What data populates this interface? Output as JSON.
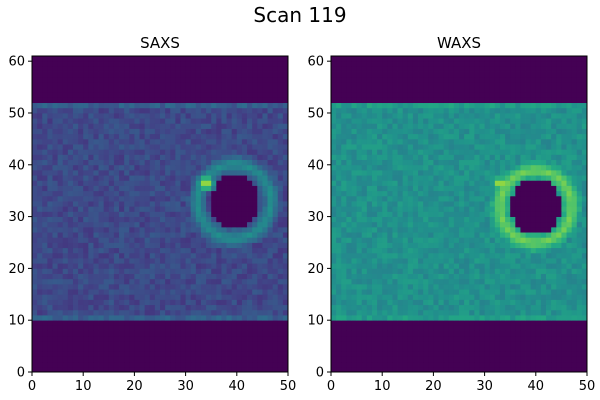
{
  "chart_data": {
    "type": "heatmap",
    "title": "Scan 119",
    "colormap": "viridis",
    "panels": [
      {
        "title": "SAXS",
        "xlim": [
          0,
          50
        ],
        "ylim": [
          0,
          61
        ],
        "xticks": [
          0,
          10,
          20,
          30,
          40,
          50
        ],
        "yticks": [
          0,
          10,
          20,
          30,
          40,
          50,
          60
        ],
        "grid": false,
        "sample_band_y": [
          9.5,
          52
        ],
        "background_level": 0.0,
        "band_level": 0.22,
        "band_edge_level": 0.3,
        "hole_center": [
          39.5,
          33
        ],
        "hole_radius": [
          4.8,
          5.5
        ],
        "ring_radius": 7.2,
        "ring_level": 0.5,
        "hotspot": {
          "x": 34,
          "y": 36.5,
          "level": 1.0
        }
      },
      {
        "title": "WAXS",
        "xlim": [
          0,
          50
        ],
        "ylim": [
          0,
          61
        ],
        "xticks": [
          0,
          10,
          20,
          30,
          40,
          50
        ],
        "yticks": [
          0,
          10,
          20,
          30,
          40,
          50,
          60
        ],
        "grid": false,
        "sample_band_y": [
          9.5,
          52.5
        ],
        "background_level": 0.0,
        "band_level": 0.5,
        "band_edge_level": 0.55,
        "hole_center": [
          40,
          32
        ],
        "hole_radius": [
          5,
          5.5
        ],
        "ring_radius": 7.0,
        "ring_level": 0.8,
        "hotspot": {
          "x": 33,
          "y": 36.5,
          "level": 1.0
        }
      }
    ]
  }
}
